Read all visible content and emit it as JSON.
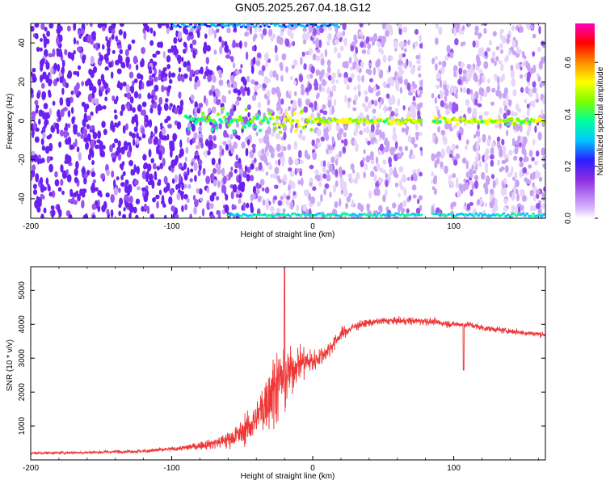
{
  "title": "GN05.2025.267.04.18.G12",
  "chart_data": [
    {
      "type": "heatmap",
      "xlabel": "Height of straight line (km)",
      "ylabel": "Frequency (Hz)",
      "xlim": [
        -200,
        165
      ],
      "ylim": [
        -50,
        50
      ],
      "xticks": [
        -200,
        -100,
        0,
        100
      ],
      "yticks": [
        -40,
        -20,
        0,
        20,
        40
      ],
      "colorbar": {
        "label": "Normalized spectral amplitude",
        "range": [
          0.0,
          0.75
        ],
        "ticks": [
          0.0,
          0.2,
          0.4,
          0.6
        ],
        "colormap": [
          "#ffffff",
          "#8a2be2",
          "#2a1fff",
          "#00c8ff",
          "#00ff9a",
          "#7dff00",
          "#ffff00",
          "#ff8c00",
          "#ff0000",
          "#ff00c0"
        ]
      },
      "features": {
        "carrier_line_hz": 0,
        "carrier_start_km": -90,
        "data_gap_km": [
          78,
          84
        ]
      }
    },
    {
      "type": "line",
      "xlabel": "Height of straight line (km)",
      "ylabel": "SNR (10 * v/v)",
      "xlim": [
        -200,
        165
      ],
      "ylim": [
        0,
        5700
      ],
      "xticks": [
        -200,
        -100,
        0,
        100
      ],
      "yticks": [
        1000,
        2000,
        3000,
        4000,
        5000
      ],
      "grid": false,
      "series": [
        {
          "color": "#ef3535",
          "x": [
            -200,
            -180,
            -160,
            -140,
            -120,
            -100,
            -90,
            -80,
            -70,
            -60,
            -50,
            -40,
            -35,
            -30,
            -25,
            -20,
            -15,
            -10,
            -5,
            0,
            10,
            20,
            30,
            40,
            50,
            60,
            70,
            80,
            90,
            100,
            110,
            120,
            130,
            140,
            150,
            165
          ],
          "y": [
            200,
            210,
            220,
            240,
            260,
            320,
            360,
            420,
            500,
            600,
            800,
            1200,
            1600,
            2000,
            2300,
            2400,
            2600,
            2900,
            2900,
            2900,
            3200,
            3700,
            3950,
            4050,
            4100,
            4100,
            4100,
            4100,
            4050,
            4000,
            4000,
            3900,
            3850,
            3800,
            3750,
            3700
          ],
          "noise": [
            60,
            60,
            60,
            60,
            70,
            90,
            120,
            150,
            250,
            350,
            500,
            800,
            1200,
            1500,
            1500,
            1200,
            900,
            700,
            600,
            500,
            350,
            250,
            180,
            150,
            150,
            150,
            150,
            150,
            140,
            130,
            130,
            120,
            120,
            110,
            110,
            110
          ]
        }
      ],
      "annotations": [
        {
          "x": -20,
          "y": 5650,
          "label": ""
        },
        {
          "x": 107,
          "y": 2650,
          "label": ""
        }
      ]
    }
  ]
}
